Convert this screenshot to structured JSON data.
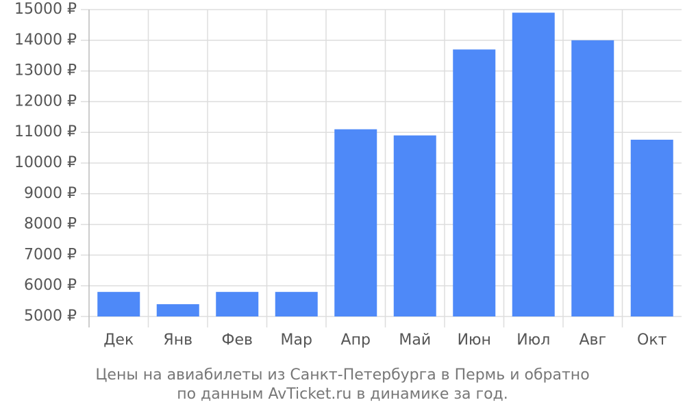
{
  "chart_data": {
    "type": "bar",
    "title": [
      "Цены на авиабилеты из Санкт-Петербурга в Пермь и обратно",
      "по данным AvTicket.ru в динамике за год."
    ],
    "categories": [
      "Дек",
      "Янв",
      "Фев",
      "Мар",
      "Апр",
      "Май",
      "Июн",
      "Июл",
      "Авг",
      "Окт"
    ],
    "values": [
      5800,
      5400,
      5800,
      5800,
      11100,
      10900,
      13700,
      14900,
      14000,
      10760
    ],
    "color": "#4e89f8",
    "ylim": [
      5000,
      15000
    ],
    "yticks": [
      {
        "value": 5000,
        "label": "5000 ₽"
      },
      {
        "value": 6000,
        "label": "6000 ₽"
      },
      {
        "value": 7000,
        "label": "7000 ₽"
      },
      {
        "value": 8000,
        "label": "8000 ₽"
      },
      {
        "value": 9000,
        "label": "9000 ₽"
      },
      {
        "value": 10000,
        "label": "10000 ₽"
      },
      {
        "value": 11000,
        "label": "11000 ₽"
      },
      {
        "value": 12000,
        "label": "12000 ₽"
      },
      {
        "value": 13000,
        "label": "13000 ₽"
      },
      {
        "value": 14000,
        "label": "14000 ₽"
      },
      {
        "value": 15000,
        "label": "15000 ₽"
      }
    ],
    "grid": true
  }
}
